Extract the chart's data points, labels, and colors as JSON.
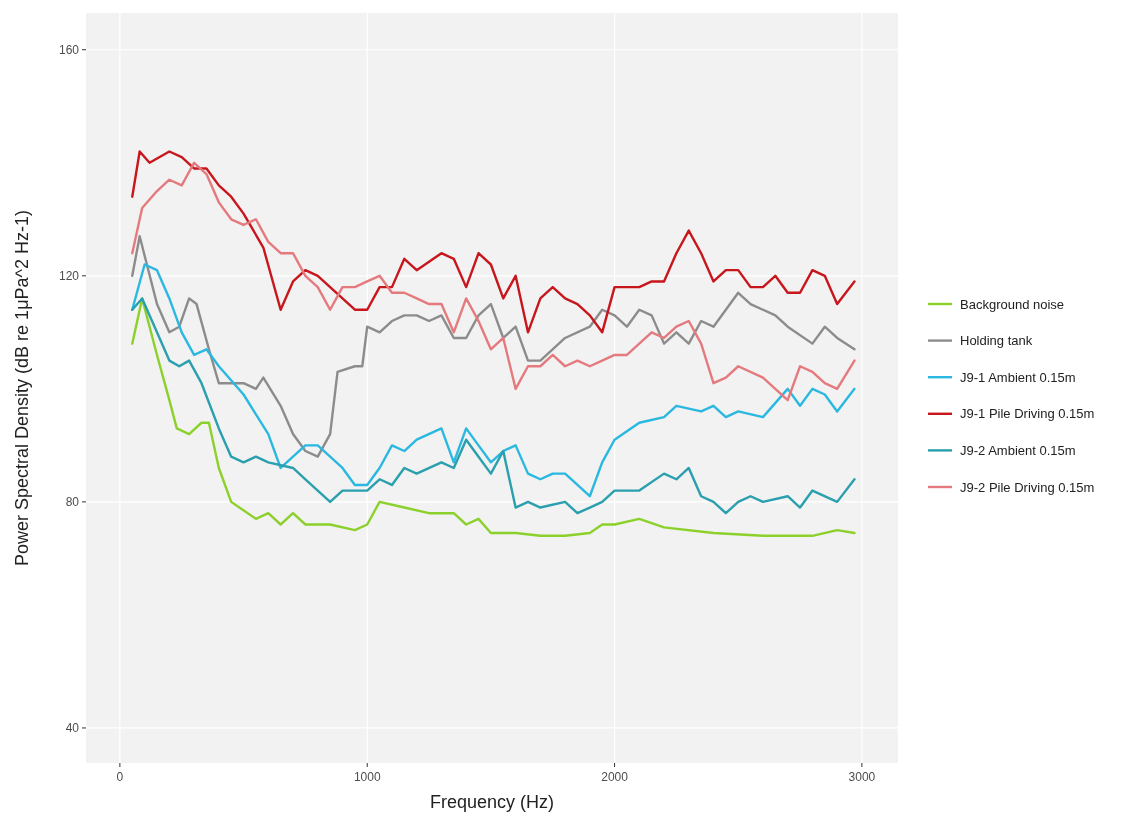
{
  "chart_data": {
    "type": "line",
    "xlabel": "Frequency (Hz)",
    "ylabel": "Power Spectral Density (dB re 1μPa^2 Hz-1)",
    "xlim": [
      -137,
      3146
    ],
    "ylim": [
      33.8,
      166.5
    ],
    "xticks": [
      0,
      1000,
      2000,
      3000
    ],
    "yticks": [
      40,
      80,
      120,
      160
    ],
    "grid": true,
    "legend": "right",
    "line_style": "solid",
    "marker": "none",
    "series": [
      {
        "name": "Background noise",
        "color": "#8cd12b",
        "x": [
          50,
          90,
          150,
          200,
          230,
          280,
          330,
          360,
          400,
          450,
          550,
          600,
          650,
          700,
          750,
          850,
          950,
          1000,
          1050,
          1150,
          1250,
          1350,
          1400,
          1450,
          1500,
          1600,
          1700,
          1800,
          1900,
          1950,
          2000,
          2100,
          2200,
          2400,
          2600,
          2800,
          2900,
          2970
        ],
        "values": [
          108,
          116,
          106,
          98,
          93,
          92,
          94,
          94,
          86,
          80,
          77,
          78,
          76,
          78,
          76,
          76,
          75,
          76,
          80,
          79,
          78,
          78,
          76,
          77,
          74.5,
          74.5,
          74,
          74,
          74.5,
          76,
          76,
          77,
          75.5,
          74.5,
          74,
          74,
          75,
          74.5
        ]
      },
      {
        "name": "Holding tank",
        "color": "#8c8c8c",
        "x": [
          50,
          80,
          150,
          200,
          240,
          280,
          310,
          360,
          400,
          450,
          500,
          550,
          580,
          650,
          700,
          750,
          800,
          850,
          880,
          950,
          980,
          1000,
          1050,
          1100,
          1150,
          1200,
          1250,
          1300,
          1350,
          1400,
          1450,
          1500,
          1550,
          1600,
          1650,
          1700,
          1800,
          1900,
          1950,
          2000,
          2050,
          2100,
          2150,
          2200,
          2250,
          2300,
          2350,
          2400,
          2450,
          2500,
          2550,
          2650,
          2700,
          2800,
          2850,
          2900,
          2970
        ],
        "values": [
          120,
          127,
          115,
          110,
          111,
          116,
          115,
          107,
          101,
          101,
          101,
          100,
          102,
          97,
          92,
          89,
          88,
          92,
          103,
          104,
          104,
          111,
          110,
          112,
          113,
          113,
          112,
          113,
          109,
          109,
          113,
          115,
          109,
          111,
          105,
          105,
          109,
          111,
          114,
          113,
          111,
          114,
          113,
          108,
          110,
          108,
          112,
          111,
          114,
          117,
          115,
          113,
          111,
          108,
          111,
          109,
          107
        ]
      },
      {
        "name": "J9-1 Ambient 0.15m",
        "color": "#2bb8e0",
        "x": [
          50,
          100,
          150,
          200,
          250,
          300,
          350,
          400,
          500,
          600,
          650,
          700,
          750,
          800,
          850,
          900,
          950,
          1000,
          1050,
          1100,
          1150,
          1200,
          1300,
          1350,
          1400,
          1450,
          1500,
          1550,
          1600,
          1650,
          1700,
          1750,
          1800,
          1900,
          1950,
          2000,
          2100,
          2200,
          2250,
          2350,
          2400,
          2450,
          2500,
          2600,
          2700,
          2750,
          2800,
          2850,
          2900,
          2970
        ],
        "values": [
          114,
          122,
          121,
          116,
          110,
          106,
          107,
          104,
          99,
          92,
          86,
          88,
          90,
          90,
          88,
          86,
          83,
          83,
          86,
          90,
          89,
          91,
          93,
          87,
          93,
          90,
          87,
          89,
          90,
          85,
          84,
          85,
          85,
          81,
          87,
          91,
          94,
          95,
          97,
          96,
          97,
          95,
          96,
          95,
          100,
          97,
          100,
          99,
          96,
          100
        ]
      },
      {
        "name": "J9-1 Pile Driving 0.15m",
        "color": "#c8161d",
        "x": [
          50,
          80,
          120,
          200,
          250,
          300,
          350,
          400,
          450,
          500,
          580,
          650,
          700,
          750,
          800,
          850,
          950,
          1000,
          1050,
          1100,
          1150,
          1200,
          1300,
          1350,
          1400,
          1450,
          1500,
          1550,
          1600,
          1650,
          1700,
          1750,
          1800,
          1850,
          1900,
          1950,
          2000,
          2100,
          2150,
          2200,
          2250,
          2300,
          2350,
          2400,
          2450,
          2500,
          2550,
          2600,
          2650,
          2700,
          2750,
          2800,
          2850,
          2900,
          2970
        ],
        "values": [
          134,
          142,
          140,
          142,
          141,
          139,
          139,
          136,
          134,
          131,
          125,
          114,
          119,
          121,
          120,
          118,
          114,
          114,
          118,
          118,
          123,
          121,
          124,
          123,
          118,
          124,
          122,
          116,
          120,
          110,
          116,
          118,
          116,
          115,
          113,
          110,
          118,
          118,
          119,
          119,
          124,
          128,
          124,
          119,
          121,
          121,
          118,
          118,
          120,
          117,
          117,
          121,
          120,
          115,
          119
        ]
      },
      {
        "name": "J9-2 Ambient 0.15m",
        "color": "#2a9fae",
        "x": [
          50,
          90,
          150,
          200,
          240,
          280,
          330,
          400,
          450,
          500,
          550,
          600,
          700,
          750,
          800,
          850,
          900,
          950,
          1000,
          1050,
          1100,
          1150,
          1200,
          1300,
          1350,
          1400,
          1450,
          1500,
          1550,
          1600,
          1650,
          1700,
          1800,
          1850,
          1900,
          1950,
          2000,
          2100,
          2200,
          2250,
          2300,
          2350,
          2400,
          2450,
          2500,
          2550,
          2600,
          2700,
          2750,
          2800,
          2900,
          2970
        ],
        "values": [
          114,
          116,
          110,
          105,
          104,
          105,
          101,
          93,
          88,
          87,
          88,
          87,
          86,
          84,
          82,
          80,
          82,
          82,
          82,
          84,
          83,
          86,
          85,
          87,
          86,
          91,
          88,
          85,
          89,
          79,
          80,
          79,
          80,
          78,
          79,
          80,
          82,
          82,
          85,
          84,
          86,
          81,
          80,
          78,
          80,
          81,
          80,
          81,
          79,
          82,
          80,
          84
        ]
      },
      {
        "name": "J9-2 Pile Driving 0.15m",
        "color": "#e57a7e",
        "x": [
          50,
          90,
          150,
          200,
          250,
          300,
          350,
          400,
          450,
          500,
          550,
          600,
          650,
          700,
          750,
          800,
          850,
          900,
          950,
          1000,
          1050,
          1100,
          1150,
          1200,
          1250,
          1300,
          1350,
          1400,
          1450,
          1500,
          1550,
          1600,
          1650,
          1700,
          1750,
          1800,
          1850,
          1900,
          1950,
          2000,
          2050,
          2100,
          2150,
          2200,
          2250,
          2300,
          2350,
          2400,
          2450,
          2500,
          2600,
          2700,
          2750,
          2800,
          2850,
          2900,
          2970
        ],
        "values": [
          124,
          132,
          135,
          137,
          136,
          140,
          138,
          133,
          130,
          129,
          130,
          126,
          124,
          124,
          120,
          118,
          114,
          118,
          118,
          119,
          120,
          117,
          117,
          116,
          115,
          115,
          110,
          116,
          112,
          107,
          109,
          100,
          104,
          104,
          106,
          104,
          105,
          104,
          105,
          106,
          106,
          108,
          110,
          109,
          111,
          112,
          108,
          101,
          102,
          104,
          102,
          98,
          104,
          103,
          101,
          100,
          105
        ]
      }
    ]
  }
}
